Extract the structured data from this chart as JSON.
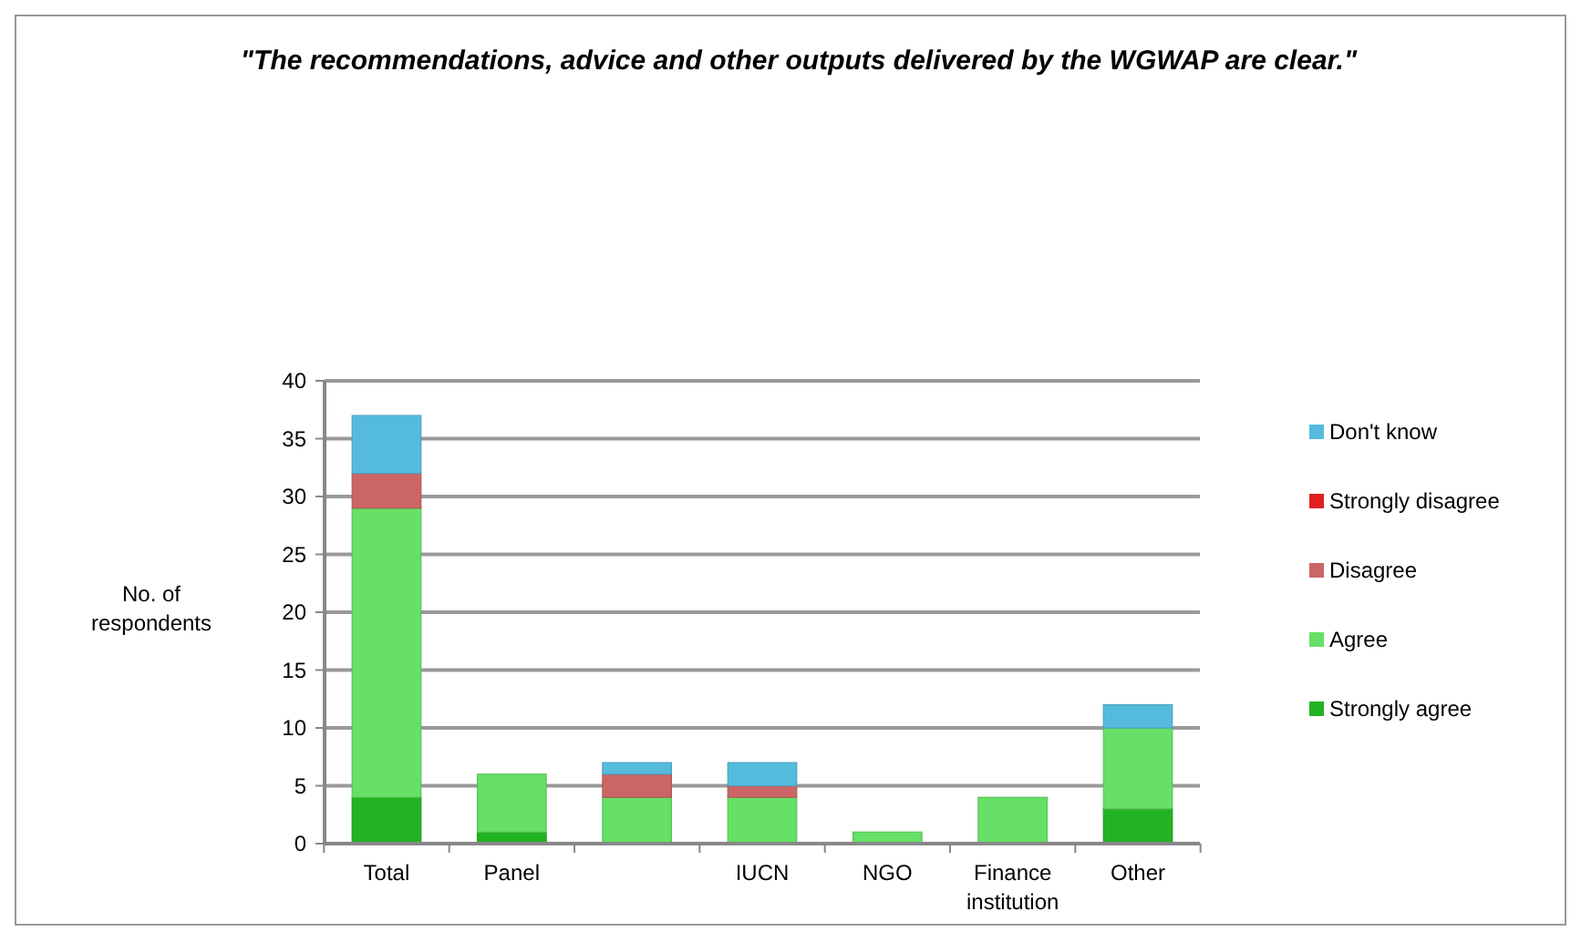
{
  "chart_data": {
    "type": "bar",
    "stacked": true,
    "title": "\"The recommendations, advice and other outputs delivered by the WGWAP are clear.\"",
    "ylabel": "No. of respondents",
    "categories": [
      "Total",
      "Panel",
      null,
      "IUCN",
      "NGO",
      "Finance institution",
      "Other"
    ],
    "series": [
      {
        "name": "Strongly agree",
        "color": "#22b322",
        "values": [
          4,
          1,
          0,
          0,
          0,
          0,
          3
        ]
      },
      {
        "name": "Agree",
        "color": "#66e066",
        "values": [
          25,
          5,
          4,
          4,
          1,
          4,
          7
        ]
      },
      {
        "name": "Disagree",
        "color": "#cc6666",
        "values": [
          3,
          0,
          2,
          1,
          0,
          0,
          0
        ]
      },
      {
        "name": "Strongly disagree",
        "color": "#e02020",
        "values": [
          0,
          0,
          0,
          0,
          0,
          0,
          0
        ]
      },
      {
        "name": "Don't know",
        "color": "#55bbdd",
        "values": [
          5,
          0,
          1,
          2,
          0,
          0,
          2
        ]
      }
    ],
    "ylim": [
      0,
      40
    ],
    "yticks": [
      0,
      5,
      10,
      15,
      20,
      25,
      30,
      35,
      40
    ],
    "grid": "y",
    "legend": "right"
  }
}
